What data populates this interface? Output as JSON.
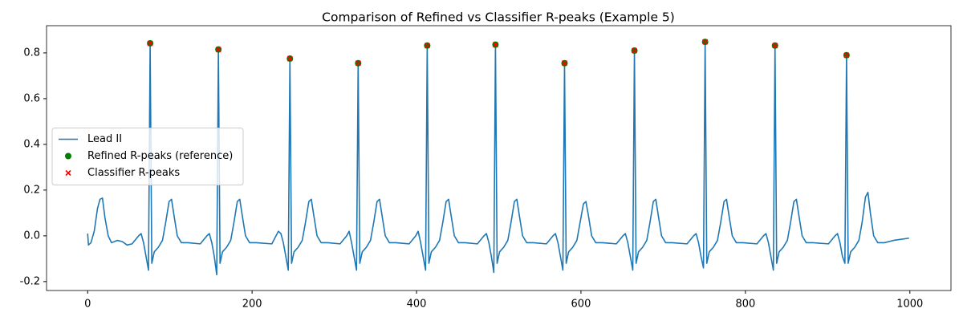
{
  "chart_data": {
    "type": "line",
    "title": "Comparison of Refined vs Classifier R-peaks (Example 5)",
    "xlim": [
      -50,
      1050
    ],
    "ylim": [
      -0.239,
      0.919
    ],
    "xticks": [
      0,
      200,
      400,
      600,
      800,
      1000
    ],
    "yticks": [
      -0.2,
      {
        "value": 0,
        "label": "0.0"
      },
      0.2,
      0.4,
      0.6,
      0.8
    ],
    "legend": "center left",
    "series": [
      {
        "name": "Lead II",
        "type": "line",
        "color": "#1f77b4",
        "x": [
          0,
          1,
          4,
          8,
          12,
          15,
          18,
          21,
          25,
          29,
          36,
          42,
          48,
          54,
          62,
          65,
          68,
          71,
          74,
          76,
          78,
          81,
          86,
          91,
          95,
          99,
          102,
          105,
          109,
          114,
          122,
          137,
          145,
          148,
          151,
          154,
          157,
          159,
          161,
          164,
          169,
          174,
          178,
          182,
          185,
          188,
          192,
          197,
          205,
          224,
          232,
          235,
          238,
          241,
          244,
          246,
          248,
          251,
          256,
          261,
          265,
          269,
          272,
          275,
          279,
          284,
          292,
          307,
          315,
          318,
          321,
          324,
          327,
          329,
          331,
          334,
          339,
          344,
          348,
          352,
          355,
          358,
          362,
          367,
          375,
          391,
          399,
          402,
          405,
          408,
          411,
          413,
          415,
          418,
          423,
          428,
          432,
          436,
          439,
          442,
          446,
          451,
          459,
          474,
          482,
          485,
          488,
          491,
          494,
          496,
          498,
          501,
          506,
          511,
          515,
          519,
          522,
          525,
          529,
          534,
          542,
          558,
          566,
          569,
          572,
          575,
          578,
          580,
          582,
          585,
          590,
          595,
          599,
          603,
          606,
          609,
          613,
          618,
          626,
          643,
          651,
          654,
          657,
          660,
          663,
          665,
          667,
          670,
          675,
          680,
          684,
          688,
          691,
          694,
          698,
          703,
          711,
          729,
          737,
          740,
          743,
          746,
          749,
          751,
          753,
          756,
          761,
          766,
          770,
          774,
          777,
          780,
          784,
          789,
          797,
          814,
          822,
          825,
          828,
          831,
          834,
          836,
          838,
          841,
          846,
          851,
          855,
          859,
          862,
          865,
          869,
          874,
          882,
          901,
          909,
          912,
          915,
          918,
          921,
          923,
          925,
          928,
          933,
          938,
          942,
          946,
          949,
          952,
          956,
          961,
          969,
          980,
          999
        ],
        "values": [
          0.01,
          -0.04,
          -0.03,
          0.02,
          0.12,
          0.16,
          0.165,
          0.08,
          0.0,
          -0.03,
          -0.02,
          -0.025,
          -0.04,
          -0.035,
          0.0,
          0.01,
          -0.03,
          -0.09,
          -0.15,
          0.842,
          -0.12,
          -0.07,
          -0.05,
          -0.02,
          0.06,
          0.15,
          0.16,
          0.09,
          0.0,
          -0.03,
          -0.03,
          -0.035,
          0.0,
          0.01,
          -0.03,
          -0.09,
          -0.17,
          0.815,
          -0.12,
          -0.07,
          -0.05,
          -0.02,
          0.06,
          0.15,
          0.16,
          0.09,
          0.0,
          -0.03,
          -0.03,
          -0.035,
          0.02,
          0.01,
          -0.03,
          -0.09,
          -0.15,
          0.775,
          -0.12,
          -0.07,
          -0.05,
          -0.02,
          0.06,
          0.15,
          0.16,
          0.09,
          0.0,
          -0.03,
          -0.03,
          -0.035,
          0.0,
          0.02,
          -0.03,
          -0.09,
          -0.15,
          0.755,
          -0.12,
          -0.07,
          -0.05,
          -0.02,
          0.06,
          0.15,
          0.16,
          0.09,
          0.0,
          -0.03,
          -0.03,
          -0.035,
          0.0,
          0.02,
          -0.03,
          -0.09,
          -0.15,
          0.832,
          -0.12,
          -0.07,
          -0.05,
          -0.02,
          0.06,
          0.15,
          0.16,
          0.09,
          0.0,
          -0.03,
          -0.03,
          -0.035,
          0.0,
          0.01,
          -0.03,
          -0.09,
          -0.16,
          0.836,
          -0.12,
          -0.07,
          -0.05,
          -0.02,
          0.06,
          0.15,
          0.16,
          0.09,
          0.0,
          -0.03,
          -0.03,
          -0.035,
          0.0,
          0.01,
          -0.03,
          -0.09,
          -0.15,
          0.755,
          -0.12,
          -0.07,
          -0.05,
          -0.02,
          0.06,
          0.14,
          0.15,
          0.09,
          0.0,
          -0.03,
          -0.03,
          -0.035,
          0.0,
          0.01,
          -0.03,
          -0.09,
          -0.15,
          0.81,
          -0.12,
          -0.07,
          -0.05,
          -0.02,
          0.06,
          0.15,
          0.16,
          0.09,
          0.0,
          -0.03,
          -0.03,
          -0.035,
          0.0,
          0.01,
          -0.03,
          -0.09,
          -0.14,
          0.848,
          -0.12,
          -0.07,
          -0.05,
          -0.02,
          0.06,
          0.15,
          0.16,
          0.09,
          0.0,
          -0.03,
          -0.03,
          -0.035,
          0.0,
          0.01,
          -0.03,
          -0.09,
          -0.15,
          0.832,
          -0.12,
          -0.07,
          -0.05,
          -0.02,
          0.06,
          0.15,
          0.16,
          0.09,
          0.0,
          -0.03,
          -0.03,
          -0.035,
          0.0,
          0.01,
          -0.03,
          -0.09,
          -0.12,
          0.79,
          -0.12,
          -0.07,
          -0.05,
          -0.02,
          0.06,
          0.17,
          0.19,
          0.1,
          0.0,
          -0.03,
          -0.03,
          -0.02,
          -0.01
        ]
      },
      {
        "name": "Refined R-peaks (reference)",
        "type": "scatter",
        "marker": "circle",
        "color": "green",
        "x": [
          76,
          159,
          246,
          329,
          413,
          496,
          580,
          665,
          751,
          836,
          923
        ],
        "values": [
          0.842,
          0.815,
          0.775,
          0.755,
          0.832,
          0.836,
          0.755,
          0.81,
          0.848,
          0.832,
          0.79
        ]
      },
      {
        "name": "Classifier R-peaks",
        "type": "scatter",
        "marker": "cross",
        "color": "red",
        "x": [
          76,
          159,
          246,
          329,
          413,
          496,
          580,
          665,
          751,
          836,
          923
        ],
        "values": [
          0.842,
          0.815,
          0.775,
          0.755,
          0.832,
          0.836,
          0.755,
          0.81,
          0.848,
          0.832,
          0.79
        ]
      }
    ]
  }
}
